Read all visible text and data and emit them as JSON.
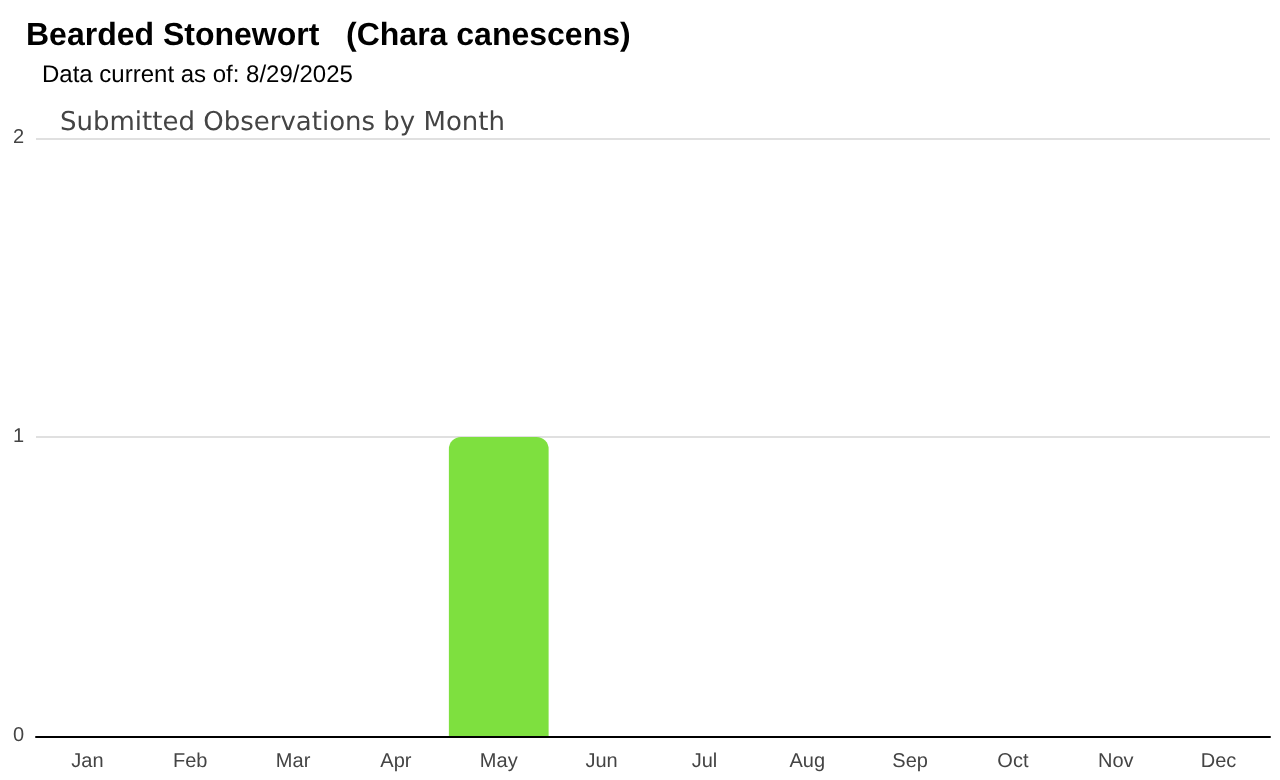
{
  "chart_data": {
    "type": "bar",
    "title": "Bearded Stonewort   (Chara canescens)",
    "subtitle": "Data current as of: 8/29/2025",
    "annotations": [
      "Submitted Observations by Month"
    ],
    "categories": [
      "Jan",
      "Feb",
      "Mar",
      "Apr",
      "May",
      "Jun",
      "Jul",
      "Aug",
      "Sep",
      "Oct",
      "Nov",
      "Dec"
    ],
    "values": [
      0,
      0,
      0,
      0,
      1,
      0,
      0,
      0,
      0,
      0,
      0,
      0
    ],
    "color": "#7ee03f",
    "ylim": [
      0,
      2
    ],
    "yticks": [
      0,
      1,
      2
    ],
    "grid": "y"
  }
}
